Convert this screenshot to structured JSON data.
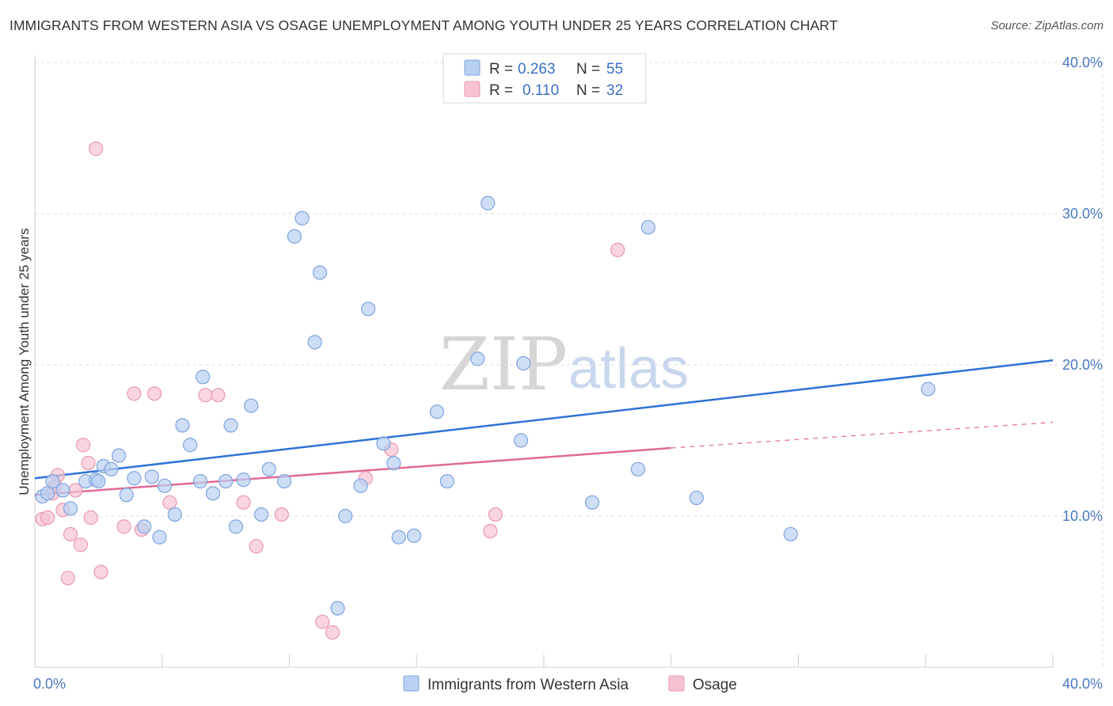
{
  "header": {
    "title": "IMMIGRANTS FROM WESTERN ASIA VS OSAGE UNEMPLOYMENT AMONG YOUTH UNDER 25 YEARS CORRELATION CHART",
    "source": "Source: ZipAtlas.com"
  },
  "watermark": {
    "zip": "ZIP",
    "atlas": "atlas"
  },
  "stats_legend": {
    "rows": [
      {
        "r_label": "R =",
        "r_value": "0.263",
        "n_label": "N =",
        "n_value": "55"
      },
      {
        "r_label": "R =",
        "r_value": "0.110",
        "n_label": "N =",
        "n_value": "32"
      }
    ]
  },
  "colors": {
    "blue_fill": "#b9d0f2",
    "blue_stroke": "#7ea3dc",
    "blue_line": "#2f72d6",
    "pink_fill": "#f7c3d1",
    "pink_stroke": "#e899b1",
    "pink_line": "#e06a95",
    "value_text": "#3b6fc4",
    "grid": "#dddddd"
  },
  "chart_data": {
    "type": "scatter",
    "title": "IMMIGRANTS FROM WESTERN ASIA VS OSAGE UNEMPLOYMENT AMONG YOUTH UNDER 25 YEARS CORRELATION CHART",
    "xlabel": "",
    "ylabel": "Unemployment Among Youth under 25 years",
    "xlim": [
      0,
      40
    ],
    "ylim": [
      0,
      40
    ],
    "x_tick_labels": [
      "0.0%",
      "40.0%"
    ],
    "y_ticks": [
      10,
      20,
      30,
      40
    ],
    "y_tick_labels": [
      "10.0%",
      "20.0%",
      "30.0%",
      "40.0%"
    ],
    "grid": true,
    "legend_position": "bottom-center",
    "series": [
      {
        "name": "Immigrants from Western Asia",
        "R": 0.263,
        "N": 55,
        "trend": {
          "x0": 0,
          "y0": 12.5,
          "x1": 40,
          "y1": 20.3
        },
        "points": [
          [
            0.3,
            11.3
          ],
          [
            0.5,
            11.5
          ],
          [
            0.7,
            12.3
          ],
          [
            1.1,
            11.7
          ],
          [
            1.4,
            10.5
          ],
          [
            2.0,
            12.3
          ],
          [
            2.4,
            12.4
          ],
          [
            2.5,
            12.3
          ],
          [
            2.7,
            13.3
          ],
          [
            3.0,
            13.1
          ],
          [
            3.3,
            14.0
          ],
          [
            3.6,
            11.4
          ],
          [
            3.9,
            12.5
          ],
          [
            4.3,
            9.3
          ],
          [
            4.6,
            12.6
          ],
          [
            4.9,
            8.6
          ],
          [
            5.1,
            12.0
          ],
          [
            5.5,
            10.1
          ],
          [
            5.8,
            16.0
          ],
          [
            6.1,
            14.7
          ],
          [
            6.5,
            12.3
          ],
          [
            6.6,
            19.2
          ],
          [
            7.0,
            11.5
          ],
          [
            7.5,
            12.3
          ],
          [
            7.7,
            16.0
          ],
          [
            7.9,
            9.3
          ],
          [
            8.2,
            12.4
          ],
          [
            8.5,
            17.3
          ],
          [
            8.9,
            10.1
          ],
          [
            9.2,
            13.1
          ],
          [
            9.8,
            12.3
          ],
          [
            10.5,
            29.7
          ],
          [
            10.2,
            28.5
          ],
          [
            11.0,
            21.5
          ],
          [
            11.2,
            26.1
          ],
          [
            11.9,
            3.9
          ],
          [
            12.2,
            10.0
          ],
          [
            12.8,
            12.0
          ],
          [
            13.1,
            23.7
          ],
          [
            13.7,
            14.8
          ],
          [
            14.1,
            13.5
          ],
          [
            14.3,
            8.6
          ],
          [
            14.9,
            8.7
          ],
          [
            15.8,
            16.9
          ],
          [
            16.2,
            12.3
          ],
          [
            17.4,
            20.4
          ],
          [
            17.8,
            30.7
          ],
          [
            19.2,
            20.1
          ],
          [
            19.1,
            15.0
          ],
          [
            21.9,
            10.9
          ],
          [
            23.7,
            13.1
          ],
          [
            24.1,
            29.1
          ],
          [
            26.0,
            11.2
          ],
          [
            29.7,
            8.8
          ],
          [
            35.1,
            18.4
          ]
        ]
      },
      {
        "name": "Osage",
        "R": 0.11,
        "N": 32,
        "trend": {
          "x0": 0,
          "y0": 11.4,
          "x1": 25,
          "y1": 14.5
        },
        "trend_dashed_extension": {
          "x0": 25,
          "y0": 14.5,
          "x1": 40,
          "y1": 16.2
        },
        "points": [
          [
            0.3,
            9.8
          ],
          [
            0.5,
            9.9
          ],
          [
            0.7,
            11.5
          ],
          [
            0.8,
            12.0
          ],
          [
            0.9,
            12.7
          ],
          [
            1.1,
            10.4
          ],
          [
            1.4,
            8.8
          ],
          [
            1.6,
            11.7
          ],
          [
            1.8,
            8.1
          ],
          [
            1.9,
            14.7
          ],
          [
            2.1,
            13.5
          ],
          [
            2.2,
            9.9
          ],
          [
            1.3,
            5.9
          ],
          [
            2.6,
            6.3
          ],
          [
            2.4,
            34.3
          ],
          [
            3.5,
            9.3
          ],
          [
            3.9,
            18.1
          ],
          [
            4.2,
            9.1
          ],
          [
            4.7,
            18.1
          ],
          [
            5.3,
            10.9
          ],
          [
            6.7,
            18.0
          ],
          [
            7.2,
            18.0
          ],
          [
            8.2,
            10.9
          ],
          [
            8.7,
            8.0
          ],
          [
            9.7,
            10.1
          ],
          [
            11.3,
            3.0
          ],
          [
            11.7,
            2.3
          ],
          [
            13.0,
            12.5
          ],
          [
            14.0,
            14.4
          ],
          [
            17.9,
            9.0
          ],
          [
            18.1,
            10.1
          ],
          [
            22.9,
            27.6
          ]
        ]
      }
    ]
  }
}
